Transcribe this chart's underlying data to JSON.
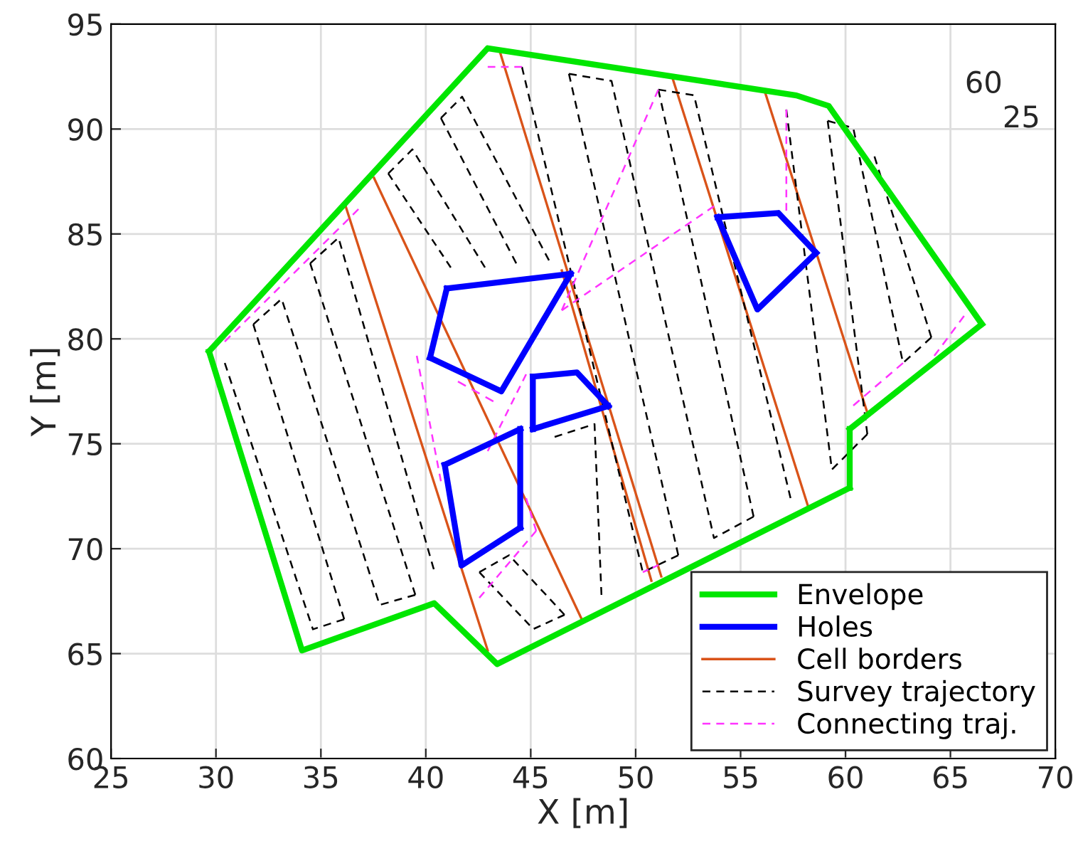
{
  "chart_data": {
    "type": "line",
    "xlabel": "X [m]",
    "ylabel": "Y [m]",
    "xlim": [
      25,
      70
    ],
    "ylim": [
      60,
      95
    ],
    "xticks": [
      25,
      30,
      35,
      40,
      45,
      50,
      55,
      60,
      65,
      70
    ],
    "yticks": [
      60,
      65,
      70,
      75,
      80,
      85,
      90,
      95
    ],
    "grid": true,
    "legend": "bottom right",
    "marker": "none",
    "annotations": [
      "60",
      "25"
    ],
    "series": [
      {
        "name": "Envelope",
        "color": "#00e600",
        "line_style": "solid",
        "x": [
          29.67,
          42.95,
          57.66,
          59.2,
          66.5
        ],
        "values": [
          79.4,
          93.85,
          91.6,
          91.1,
          80.7
        ]
      },
      {
        "color": "#00e600",
        "line_style": "solid",
        "x": [
          66.5,
          60.2
        ],
        "values": [
          80.7,
          75.7
        ]
      },
      {
        "color": "#00e600",
        "line_style": "solid",
        "x": [
          60.2,
          60.2
        ],
        "values": [
          75.7,
          72.9
        ]
      },
      {
        "color": "#00e600",
        "line_style": "solid",
        "x": [
          60.2,
          43.4,
          40.4,
          34.1,
          29.67
        ],
        "values": [
          72.9,
          64.5,
          67.4,
          65.15,
          79.4
        ]
      },
      {
        "name": "Holes",
        "color": "#0000ff",
        "line_style": "solid",
        "x": [
          41.0,
          46.9
        ],
        "values": [
          82.4,
          83.1
        ]
      },
      {
        "color": "#0000ff",
        "line_style": "solid",
        "x": [
          46.9,
          43.6,
          40.2
        ],
        "values": [
          83.1,
          77.5,
          79.1
        ]
      },
      {
        "color": "#0000ff",
        "line_style": "solid",
        "x": [
          40.2,
          41.0
        ],
        "values": [
          79.1,
          82.4
        ]
      },
      {
        "color": "#0000ff",
        "line_style": "solid",
        "x": [
          40.9,
          44.5
        ],
        "values": [
          74.0,
          75.7
        ]
      },
      {
        "color": "#0000ff",
        "line_style": "solid",
        "x": [
          44.5,
          44.5
        ],
        "values": [
          75.7,
          71.0
        ]
      },
      {
        "color": "#0000ff",
        "line_style": "solid",
        "x": [
          44.5,
          41.7,
          40.9
        ],
        "values": [
          71.0,
          69.2,
          74.0
        ]
      },
      {
        "color": "#0000ff",
        "line_style": "solid",
        "x": [
          45.1,
          47.2,
          48.7
        ],
        "values": [
          78.2,
          78.4,
          76.8
        ]
      },
      {
        "color": "#0000ff",
        "line_style": "solid",
        "x": [
          48.7,
          45.1
        ],
        "values": [
          76.8,
          75.7
        ]
      },
      {
        "color": "#0000ff",
        "line_style": "solid",
        "x": [
          45.1,
          45.1
        ],
        "values": [
          75.7,
          78.2
        ]
      },
      {
        "color": "#0000ff",
        "line_style": "solid",
        "x": [
          53.9,
          56.8,
          58.6
        ],
        "values": [
          85.8,
          86.0,
          84.1
        ]
      },
      {
        "color": "#0000ff",
        "line_style": "solid",
        "x": [
          58.6,
          55.8,
          53.9
        ],
        "values": [
          84.1,
          81.4,
          85.8
        ]
      },
      {
        "name": "Cell borders",
        "color": "#d95319",
        "line_style": "solid",
        "x": [
          36.18,
          42.95
        ],
        "values": [
          86.32,
          65.15
        ]
      },
      {
        "color": "#d95319",
        "line_style": "solid",
        "x": [
          37.53,
          47.43
        ],
        "values": [
          87.67,
          66.64
        ]
      },
      {
        "color": "#d95319",
        "line_style": "solid",
        "x": [
          43.5,
          51.22
        ],
        "values": [
          93.78,
          68.68
        ]
      },
      {
        "color": "#d95319",
        "line_style": "solid",
        "x": [
          46.48,
          50.75
        ],
        "values": [
          83.26,
          68.47
        ]
      },
      {
        "color": "#d95319",
        "line_style": "solid",
        "x": [
          51.76,
          58.2
        ],
        "values": [
          92.42,
          72.07
        ]
      },
      {
        "color": "#d95319",
        "line_style": "solid",
        "x": [
          56.17,
          61.04
        ],
        "values": [
          91.74,
          76.48
        ]
      },
      {
        "name": "Survey trajectory",
        "color": "#000000",
        "line_style": "dashed",
        "x": [
          30.42,
          34.62,
          36.11
        ],
        "values": [
          78.85,
          66.16,
          66.64
        ]
      },
      {
        "color": "#000000",
        "line_style": "dashed",
        "x": [
          36.11,
          31.78
        ],
        "values": [
          66.64,
          80.69
        ]
      },
      {
        "color": "#000000",
        "line_style": "dashed",
        "x": [
          31.78,
          33.13,
          37.8,
          39.5
        ],
        "values": [
          80.69,
          81.91,
          67.32,
          67.8
        ]
      },
      {
        "color": "#000000",
        "line_style": "dashed",
        "x": [
          39.5,
          34.49
        ],
        "values": [
          67.8,
          83.6
        ]
      },
      {
        "color": "#000000",
        "line_style": "dashed",
        "x": [
          34.49,
          35.84,
          40.38
        ],
        "values": [
          83.6,
          84.82,
          69.02
        ]
      },
      {
        "color": "#000000",
        "line_style": "dashed",
        "x": [
          41.19,
          38.21
        ],
        "values": [
          83.4,
          87.88
        ]
      },
      {
        "color": "#000000",
        "line_style": "dashed",
        "x": [
          38.21,
          39.36,
          42.82
        ],
        "values": [
          87.88,
          89.03,
          83.4
        ]
      },
      {
        "color": "#000000",
        "line_style": "dashed",
        "x": [
          44.31,
          40.72
        ],
        "values": [
          83.6,
          90.52
        ]
      },
      {
        "color": "#000000",
        "line_style": "dashed",
        "x": [
          40.72,
          41.73,
          45.87
        ],
        "values": [
          90.52,
          91.54,
          83.74
        ]
      },
      {
        "color": "#000000",
        "line_style": "dashed",
        "x": [
          44.58,
          50.34,
          52.03
        ],
        "values": [
          92.96,
          68.88,
          69.69
        ]
      },
      {
        "color": "#000000",
        "line_style": "dashed",
        "x": [
          52.03,
          46.82
        ],
        "values": [
          69.69,
          92.63
        ]
      },
      {
        "color": "#000000",
        "line_style": "dashed",
        "x": [
          46.82,
          48.85,
          53.73,
          55.62
        ],
        "values": [
          92.63,
          92.29,
          70.51,
          71.53
        ]
      },
      {
        "color": "#000000",
        "line_style": "dashed",
        "x": [
          55.62,
          51.08
        ],
        "values": [
          71.53,
          91.88
        ]
      },
      {
        "color": "#000000",
        "line_style": "dashed",
        "x": [
          51.08,
          52.78,
          57.38
        ],
        "values": [
          91.88,
          91.61,
          72.41
        ]
      },
      {
        "color": "#000000",
        "line_style": "dashed",
        "x": [
          57.18,
          59.35,
          61.04
        ],
        "values": [
          90.93,
          73.77,
          75.46
        ]
      },
      {
        "color": "#000000",
        "line_style": "dashed",
        "x": [
          61.04,
          59.15
        ],
        "values": [
          75.46,
          90.39
        ]
      },
      {
        "color": "#000000",
        "line_style": "dashed",
        "x": [
          59.15,
          60.37,
          62.74,
          64.09
        ],
        "values": [
          90.39,
          90.05,
          78.85,
          80.07
        ]
      },
      {
        "color": "#000000",
        "line_style": "dashed",
        "x": [
          64.09,
          61.38
        ],
        "values": [
          80.07,
          88.69
        ]
      },
      {
        "color": "#000000",
        "line_style": "dashed",
        "x": [
          42.55,
          43.97,
          46.61
        ],
        "values": [
          68.88,
          69.69,
          66.85
        ]
      },
      {
        "color": "#000000",
        "line_style": "dashed",
        "x": [
          46.61,
          45.12,
          42.55
        ],
        "values": [
          66.85,
          66.17,
          68.88
        ]
      },
      {
        "color": "#000000",
        "line_style": "dashed",
        "x": [
          46.14,
          48.04,
          48.37
        ],
        "values": [
          75.33,
          75.94,
          67.8
        ]
      },
      {
        "name": "Connecting traj.",
        "color": "#ff33ff",
        "line_style": "dashed",
        "x": [
          30.42,
          36.79
        ],
        "values": [
          79.87,
          86.18
        ]
      },
      {
        "color": "#ff33ff",
        "line_style": "dashed",
        "x": [
          42.95,
          44.58
        ],
        "values": [
          92.96,
          92.96
        ]
      },
      {
        "color": "#ff33ff",
        "line_style": "dashed",
        "x": [
          51.08,
          46.48
        ],
        "values": [
          91.88,
          81.36
        ]
      },
      {
        "color": "#ff33ff",
        "line_style": "dashed",
        "x": [
          46.48,
          53.73
        ],
        "values": [
          81.36,
          86.32
        ]
      },
      {
        "color": "#ff33ff",
        "line_style": "dashed",
        "x": [
          57.18,
          57.18
        ],
        "values": [
          90.93,
          86.11
        ]
      },
      {
        "color": "#ff33ff",
        "line_style": "dashed",
        "x": [
          65.65,
          64.23
        ],
        "values": [
          81.09,
          79.19
        ]
      },
      {
        "color": "#ff33ff",
        "line_style": "dashed",
        "x": [
          62.74,
          60.37
        ],
        "values": [
          78.85,
          76.82
        ]
      },
      {
        "color": "#ff33ff",
        "line_style": "dashed",
        "x": [
          39.57,
          40.72
        ],
        "values": [
          79.19,
          73.22
        ]
      },
      {
        "color": "#ff33ff",
        "line_style": "dashed",
        "x": [
          41.53,
          43.22
        ],
        "values": [
          77.97,
          77.02
        ]
      },
      {
        "color": "#ff33ff",
        "line_style": "dashed",
        "x": [
          44.78,
          42.95
        ],
        "values": [
          78.31,
          74.65
        ]
      },
      {
        "color": "#ff33ff",
        "line_style": "dashed",
        "x": [
          44.78,
          45.26
        ],
        "values": [
          72.41,
          70.85
        ]
      },
      {
        "color": "#ff33ff",
        "line_style": "dashed",
        "x": [
          45.26,
          42.55
        ],
        "values": [
          70.85,
          67.66
        ]
      },
      {
        "color": "#ff33ff",
        "line_style": "dashed",
        "x": [
          50.34,
          51.08
        ],
        "values": [
          68.88,
          69.22
        ]
      }
    ]
  }
}
